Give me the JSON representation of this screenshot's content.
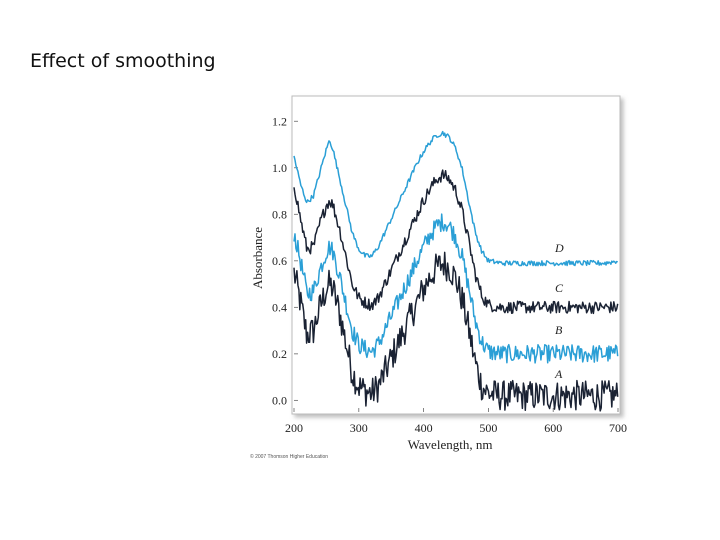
{
  "slide": {
    "title": "Effect of smoothing"
  },
  "chart_data": {
    "type": "line",
    "title": "",
    "xlabel": "Wavelength, nm",
    "ylabel": "Absorbance",
    "xlim": [
      200,
      700
    ],
    "ylim": [
      -0.05,
      1.3
    ],
    "x_ticks": [
      200,
      300,
      400,
      500,
      600,
      700
    ],
    "y_ticks": [
      0.0,
      0.2,
      0.4,
      0.6,
      0.8,
      1.0,
      1.2
    ],
    "x_tick_labels": [
      "200",
      "300",
      "400",
      "500",
      "600",
      "700"
    ],
    "y_tick_labels": [
      "0.0",
      "0.2",
      "0.4",
      "0.6",
      "0.8",
      "1.0",
      "1.2"
    ],
    "x": [
      200,
      210,
      220,
      230,
      240,
      250,
      255,
      260,
      270,
      280,
      290,
      300,
      310,
      320,
      330,
      340,
      350,
      360,
      370,
      380,
      390,
      400,
      410,
      420,
      430,
      440,
      450,
      460,
      470,
      480,
      490,
      500,
      520,
      540,
      560,
      580,
      600,
      620,
      640,
      660,
      680,
      700
    ],
    "series": [
      {
        "name": "A",
        "color": "#1a2233",
        "noise": 0.03,
        "values": [
          0.55,
          0.42,
          0.28,
          0.3,
          0.4,
          0.48,
          0.5,
          0.48,
          0.38,
          0.25,
          0.12,
          0.06,
          0.04,
          0.03,
          0.06,
          0.12,
          0.18,
          0.24,
          0.3,
          0.36,
          0.42,
          0.48,
          0.53,
          0.57,
          0.59,
          0.57,
          0.52,
          0.43,
          0.3,
          0.16,
          0.06,
          0.03,
          0.02,
          0.02,
          0.02,
          0.02,
          0.02,
          0.02,
          0.02,
          0.02,
          0.02,
          0.02
        ]
      },
      {
        "name": "B",
        "color": "#2a9fd6",
        "noise": 0.018,
        "values": [
          0.72,
          0.6,
          0.46,
          0.47,
          0.56,
          0.64,
          0.66,
          0.64,
          0.54,
          0.42,
          0.3,
          0.24,
          0.22,
          0.21,
          0.24,
          0.3,
          0.36,
          0.42,
          0.48,
          0.54,
          0.6,
          0.66,
          0.71,
          0.75,
          0.77,
          0.75,
          0.7,
          0.61,
          0.48,
          0.34,
          0.25,
          0.21,
          0.2,
          0.2,
          0.2,
          0.2,
          0.2,
          0.2,
          0.2,
          0.2,
          0.2,
          0.2
        ]
      },
      {
        "name": "C",
        "color": "#1a2233",
        "noise": 0.012,
        "values": [
          0.93,
          0.78,
          0.65,
          0.66,
          0.76,
          0.84,
          0.86,
          0.84,
          0.74,
          0.62,
          0.5,
          0.44,
          0.42,
          0.41,
          0.44,
          0.5,
          0.56,
          0.62,
          0.68,
          0.74,
          0.8,
          0.86,
          0.91,
          0.95,
          0.97,
          0.95,
          0.9,
          0.81,
          0.68,
          0.54,
          0.45,
          0.41,
          0.4,
          0.4,
          0.4,
          0.4,
          0.4,
          0.4,
          0.4,
          0.4,
          0.4,
          0.4
        ]
      },
      {
        "name": "D",
        "color": "#2a9fd6",
        "noise": 0.005,
        "values": [
          1.05,
          0.93,
          0.85,
          0.88,
          0.98,
          1.08,
          1.12,
          1.08,
          0.96,
          0.84,
          0.72,
          0.65,
          0.62,
          0.62,
          0.66,
          0.72,
          0.78,
          0.84,
          0.9,
          0.96,
          1.02,
          1.07,
          1.11,
          1.14,
          1.15,
          1.13,
          1.08,
          0.99,
          0.85,
          0.72,
          0.64,
          0.6,
          0.59,
          0.59,
          0.59,
          0.59,
          0.59,
          0.59,
          0.59,
          0.59,
          0.59,
          0.6
        ]
      }
    ],
    "legend": "inline labels at right end of each curve",
    "grid": false
  },
  "footer": {
    "copyright": "© 2007 Thomson Higher Education"
  }
}
